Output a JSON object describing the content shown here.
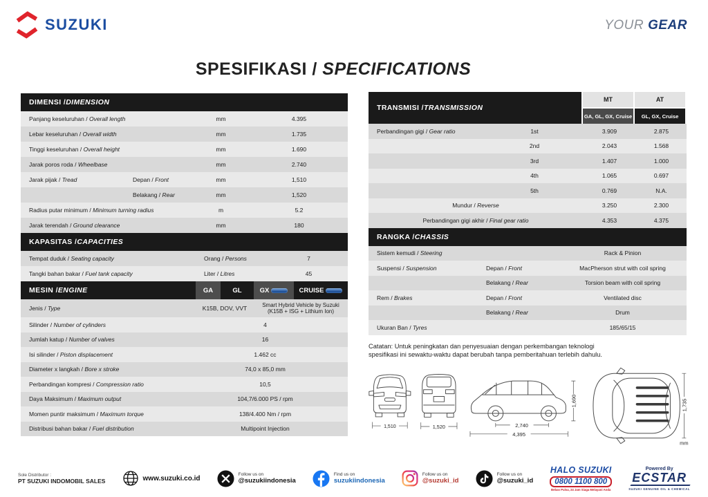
{
  "brand": {
    "name": "SUZUKI",
    "tagline_light": "YOUR",
    "tagline_bold": "GEAR"
  },
  "title": "SPESIFIKASI / SPECIFICATIONS",
  "dimension": {
    "heading": "DIMENSI / DIMENSION",
    "rows": [
      {
        "label": "Panjang keseluruhan / Overall length",
        "sub": "",
        "unit": "mm",
        "value": "4.395"
      },
      {
        "label": "Lebar keseluruhan / Overall width",
        "sub": "",
        "unit": "mm",
        "value": "1.735"
      },
      {
        "label": "Tinggi keseluruhan / Overall height",
        "sub": "",
        "unit": "mm",
        "value": "1.690"
      },
      {
        "label": "Jarak poros roda / Wheelbase",
        "sub": "",
        "unit": "mm",
        "value": "2.740"
      },
      {
        "label": "Jarak pijak / Tread",
        "sub": "Depan / Front",
        "unit": "mm",
        "value": "1,510"
      },
      {
        "label": "",
        "sub": "Belakang / Rear",
        "unit": "mm",
        "value": "1,520"
      },
      {
        "label": "Radius putar minimum / Minimum turning radius",
        "sub": "",
        "unit": "m",
        "value": "5.2"
      },
      {
        "label": "Jarak terendah / Ground clearance",
        "sub": "",
        "unit": "mm",
        "value": "180"
      }
    ]
  },
  "capacities": {
    "heading": "KAPASITAS / CAPACITIES",
    "rows": [
      {
        "label": "Tempat duduk / Seating capacity",
        "unit": "Orang / Persons",
        "value": "7"
      },
      {
        "label": "Tangki bahan bakar / Fuel tank capacity",
        "unit": "Liter / Litres",
        "value": "45"
      }
    ]
  },
  "engine": {
    "heading": "MESIN / ENGINE",
    "grades": [
      "GA",
      "GL",
      "GX",
      "CRUISE"
    ],
    "type_label": "Jenis / Type",
    "type_standard": "K15B, DOV, VVT",
    "type_hybrid": "Smart Hybrid Vehicle by Suzuki (K15B + ISG + Lithium Ion)",
    "rows": [
      {
        "label": "Silinder / Number of cylinders",
        "value": "4"
      },
      {
        "label": "Jumlah katup / Number of valves",
        "value": "16"
      },
      {
        "label": "Isi silinder / Piston displacement",
        "value": "1.462 cc"
      },
      {
        "label": "Diameter x langkah / Bore x stroke",
        "value": "74,0 x 85,0 mm"
      },
      {
        "label": "Perbandingan kompresi / Compression ratio",
        "value": "10,5"
      },
      {
        "label": "Daya Maksimum / Maximum output",
        "value": "104,7/6.000 PS / rpm"
      },
      {
        "label": "Momen puntir maksimum / Maximum torque",
        "value": "138/4.400 Nm / rpm"
      },
      {
        "label": "Distribusi bahan bakar / Fuel distribution",
        "value": "Multipoint Injection"
      }
    ]
  },
  "transmission": {
    "heading": "TRANSMISI / TRANSMISSION",
    "mt_name": "MT",
    "mt_grades": "GA, GL, GX, Cruise",
    "at_name": "AT",
    "at_grades": "GL, GX, Cruise",
    "ratio_label": "Perbandingan gigi / Gear ratio",
    "rows": [
      {
        "gear": "1st",
        "mt": "3.909",
        "at": "2.875"
      },
      {
        "gear": "2nd",
        "mt": "2.043",
        "at": "1.568"
      },
      {
        "gear": "3rd",
        "mt": "1.407",
        "at": "1.000"
      },
      {
        "gear": "4th",
        "mt": "1.065",
        "at": "0.697"
      },
      {
        "gear": "5th",
        "mt": "0.769",
        "at": "N.A."
      },
      {
        "gear": "Mundur / Reverse",
        "mt": "3.250",
        "at": "2.300"
      },
      {
        "gear": "Perbandingan gigi akhir / Final gear ratio",
        "mt": "4.353",
        "at": "4.375"
      }
    ]
  },
  "chassis": {
    "heading": "RANGKA / CHASSIS",
    "rows": [
      {
        "label": "Sistem kemudi / Steering",
        "sub": "",
        "value": "Rack & Pinion"
      },
      {
        "label": "Suspensi / Suspension",
        "sub": "Depan / Front",
        "value": "MacPherson strut with coil spring"
      },
      {
        "label": "",
        "sub": "Belakang / Rear",
        "value": "Torsion beam with coil spring"
      },
      {
        "label": "Rem / Brakes",
        "sub": "Depan / Front",
        "value": "Ventilated disc"
      },
      {
        "label": "",
        "sub": "Belakang / Rear",
        "value": "Drum"
      },
      {
        "label": "Ukuran Ban / Tyres",
        "sub": "",
        "value": "185/65/15"
      }
    ]
  },
  "note": "Catatan: Untuk peningkatan dan penyesuaian dengan perkembangan teknologi spesifikasi ini sewaktu-waktu dapat berubah tanpa pemberitahuan terlebih dahulu.",
  "diagram": {
    "front_tread": "1,510",
    "rear_tread": "1,520",
    "wheelbase": "2,740",
    "overall_length": "4,395",
    "overall_height": "1,690",
    "overall_width": "1,735",
    "unit": "mm"
  },
  "footer": {
    "distributor_label": "Sole Distributor :",
    "distributor_name": "PT SUZUKI INDOMOBIL SALES",
    "website": "www.suzuki.co.id",
    "x_pre": "Follow us on",
    "x_handle": "@suzukiindonesia",
    "fb_pre": "Find us on",
    "fb_handle": "suzukiindonesia",
    "ig_pre": "Follow us on",
    "ig_handle": "@suzuki_id",
    "tt_pre": "Follow us on",
    "tt_handle": "@suzuki_id",
    "halo_title": "HALO SUZUKI",
    "halo_phone": "0800 1100 800",
    "halo_tagline": "Bebas Pulsa, 24 Jam Siaga Melayani Anda",
    "ecstar_pre": "Powered By",
    "ecstar_name": "ECSTAR",
    "ecstar_tagline": "SUZUKI GENUINE OIL & CHEMICAL"
  },
  "colors": {
    "suzuki_red": "#e0242c",
    "suzuki_blue": "#1b4da1",
    "bar_black": "#1a1a1a",
    "row_light": "#e9e9e9",
    "row_dark": "#d9d9d9",
    "halo_blue": "#1d4da5",
    "halo_red": "#c9202b",
    "ecstar_navy": "#20356b"
  }
}
